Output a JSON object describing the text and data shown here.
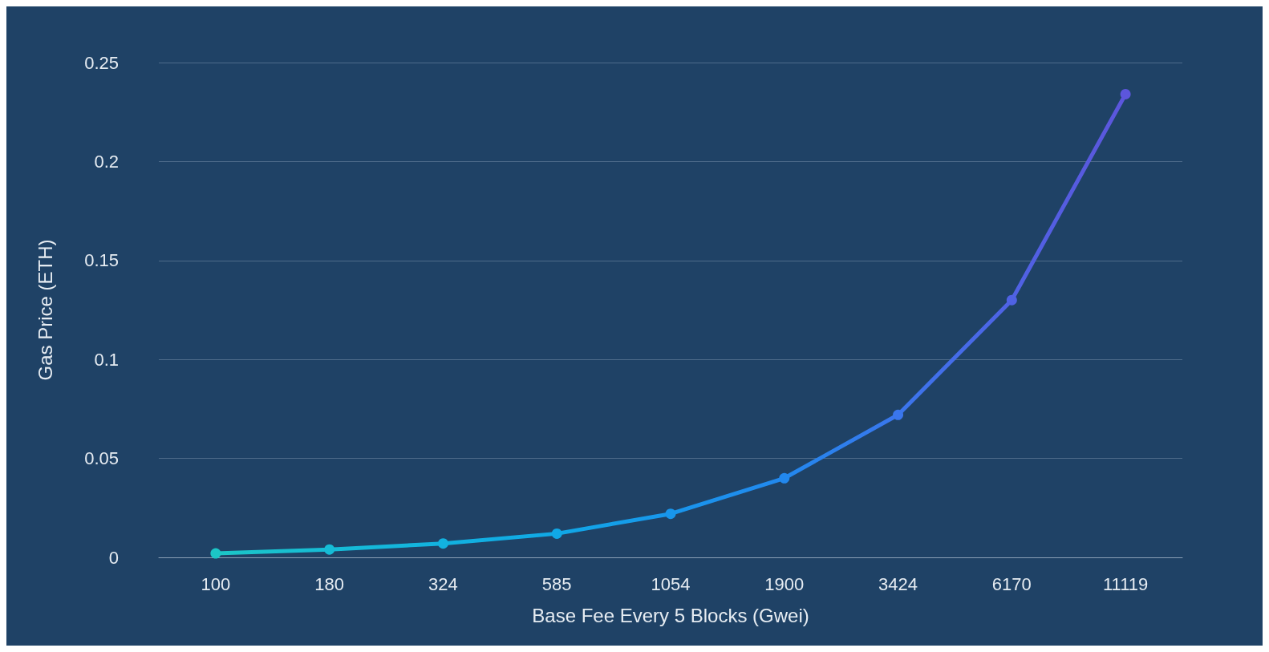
{
  "chart_data": {
    "type": "line",
    "xlabel": "Base Fee Every 5 Blocks (Gwei)",
    "ylabel": "Gas Price (ETH)",
    "categories": [
      "100",
      "180",
      "324",
      "585",
      "1054",
      "1900",
      "3424",
      "6170",
      "11119"
    ],
    "values": [
      0.002,
      0.004,
      0.007,
      0.012,
      0.022,
      0.04,
      0.072,
      0.13,
      0.234
    ],
    "colors": [
      "#1cc6c6",
      "#16bcd6",
      "#12b2e0",
      "#10a8e6",
      "#1896ec",
      "#2288ee",
      "#3a76ec",
      "#4f62e4",
      "#5c56dc"
    ],
    "ylim": [
      0,
      0.25
    ],
    "yticks": [
      0,
      0.05,
      0.1,
      0.15,
      0.2,
      0.25
    ],
    "grid": "y",
    "marker": "circle",
    "line_style": "solid"
  }
}
